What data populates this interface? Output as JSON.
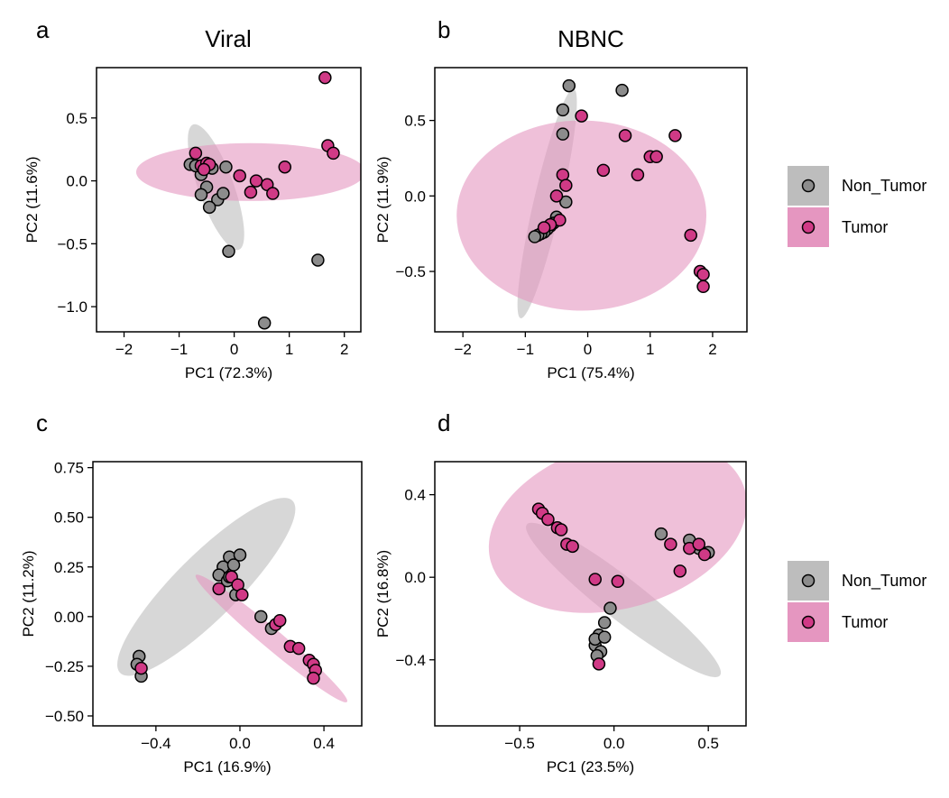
{
  "colors": {
    "non_tumor_fill": "#8c8c8c",
    "non_tumor_ellipse": "#bdbdbd",
    "tumor_fill": "#d03a86",
    "tumor_ellipse": "#e596c0",
    "point_stroke": "#000000"
  },
  "legends": [
    {
      "entries": [
        {
          "label": "Non_Tumor",
          "group": "Non_Tumor"
        },
        {
          "label": "Tumor",
          "group": "Tumor"
        }
      ]
    },
    {
      "entries": [
        {
          "label": "Non_Tumor",
          "group": "Non_Tumor"
        },
        {
          "label": "Tumor",
          "group": "Tumor"
        }
      ]
    }
  ],
  "chart_data": [
    {
      "type": "scatter",
      "panel_letter": "a",
      "title": "Viral",
      "xlabel": "PC1 (72.3%)",
      "ylabel": "PC2 (11.6%)",
      "xlim": [
        -2.5,
        2.3
      ],
      "ylim": [
        -1.2,
        0.9
      ],
      "xticks": [
        -2,
        -1,
        0,
        1,
        2
      ],
      "xticklabels": [
        "−2",
        "−1",
        "0",
        "1",
        "2"
      ],
      "yticks": [
        -1.0,
        -0.5,
        0.0,
        0.5
      ],
      "yticklabels": [
        "−1.0",
        "−0.5",
        "0.0",
        "0.5"
      ],
      "grid": false,
      "ellipses": [
        {
          "group": "Non_Tumor",
          "cx": -0.33,
          "cy": -0.05,
          "rx": 0.32,
          "ry": 0.53,
          "angle_deg": -20
        },
        {
          "group": "Tumor",
          "cx": 0.3,
          "cy": 0.07,
          "rx": 2.08,
          "ry": 0.23,
          "angle_deg": 0
        }
      ],
      "series": [
        {
          "name": "Non_Tumor",
          "x": [
            -0.8,
            -0.6,
            -0.4,
            -0.15,
            -0.5,
            -0.3,
            -0.2,
            -0.45,
            -0.6,
            0.55,
            1.52,
            -0.1,
            -0.7
          ],
          "y": [
            0.13,
            0.05,
            0.1,
            0.11,
            -0.05,
            -0.15,
            -0.1,
            -0.21,
            -0.11,
            -1.13,
            -0.63,
            -0.56,
            0.12
          ]
        },
        {
          "name": "Tumor",
          "x": [
            -0.7,
            -0.6,
            -0.5,
            -0.45,
            -0.55,
            0.1,
            0.4,
            0.6,
            0.7,
            0.92,
            0.3,
            1.65,
            1.7,
            1.8
          ],
          "y": [
            0.22,
            0.12,
            0.14,
            0.13,
            0.09,
            0.04,
            0.0,
            -0.03,
            -0.1,
            0.11,
            -0.09,
            0.82,
            0.28,
            0.22
          ]
        }
      ]
    },
    {
      "type": "scatter",
      "panel_letter": "b",
      "title": "NBNC",
      "xlabel": "PC1 (75.4%)",
      "ylabel": "PC2 (11.9%)",
      "xlim": [
        -2.45,
        2.55
      ],
      "ylim": [
        -0.9,
        0.85
      ],
      "xticks": [
        -2,
        -1,
        0,
        1,
        2
      ],
      "xticklabels": [
        "−2",
        "−1",
        "0",
        "1",
        "2"
      ],
      "yticks": [
        -0.5,
        0.0,
        0.5
      ],
      "yticklabels": [
        "−0.5",
        "0.0",
        "0.5"
      ],
      "grid": false,
      "ellipses": [
        {
          "group": "Non_Tumor",
          "cx": -0.65,
          "cy": -0.05,
          "rx": 0.22,
          "ry": 0.78,
          "angle_deg": 13
        },
        {
          "group": "Tumor",
          "cx": -0.1,
          "cy": -0.13,
          "rx": 2.0,
          "ry": 0.63,
          "angle_deg": 0
        }
      ],
      "series": [
        {
          "name": "Non_Tumor",
          "x": [
            -0.3,
            0.55,
            -0.4,
            -0.4,
            -0.5,
            -0.55,
            -0.6,
            -0.65,
            -0.7,
            -0.75,
            -0.8,
            -0.85,
            -0.35
          ],
          "y": [
            0.73,
            0.7,
            0.57,
            0.41,
            -0.14,
            -0.18,
            -0.2,
            -0.22,
            -0.24,
            -0.25,
            -0.26,
            -0.27,
            -0.04
          ]
        },
        {
          "name": "Tumor",
          "x": [
            -0.1,
            -0.4,
            -0.35,
            -0.5,
            0.25,
            0.6,
            0.8,
            1.0,
            1.1,
            1.4,
            1.65,
            1.8,
            1.85,
            1.85,
            -0.45,
            -0.6,
            -0.7
          ],
          "y": [
            0.53,
            0.14,
            0.07,
            0.0,
            0.17,
            0.4,
            0.14,
            0.26,
            0.26,
            0.4,
            -0.26,
            -0.5,
            -0.52,
            -0.6,
            -0.16,
            -0.19,
            -0.21
          ]
        }
      ]
    },
    {
      "type": "scatter",
      "panel_letter": "c",
      "title": "",
      "xlabel": "PC1 (16.9%)",
      "ylabel": "PC2 (11.2%)",
      "xlim": [
        -0.7,
        0.58
      ],
      "ylim": [
        -0.55,
        0.78
      ],
      "xticks": [
        -0.4,
        0.0,
        0.4
      ],
      "xticklabels": [
        "−0.4",
        "0.0",
        "0.4"
      ],
      "yticks": [
        -0.5,
        -0.25,
        0.0,
        0.25,
        0.5,
        0.75
      ],
      "yticklabels": [
        "−0.50",
        "−0.25",
        "0.00",
        "0.25",
        "0.50",
        "0.75"
      ],
      "grid": false,
      "ellipses": [
        {
          "group": "Non_Tumor",
          "cx": -0.16,
          "cy": 0.15,
          "rx": 0.58,
          "ry": 0.16,
          "angle_deg": -45
        },
        {
          "group": "Tumor",
          "cx": 0.15,
          "cy": -0.11,
          "rx": 0.47,
          "ry": 0.05,
          "angle_deg": 40
        }
      ],
      "series": [
        {
          "name": "Non_Tumor",
          "x": [
            -0.05,
            -0.08,
            -0.1,
            -0.06,
            -0.03,
            0.0,
            -0.02,
            -0.05,
            0.1,
            0.15,
            -0.48,
            -0.49,
            -0.47
          ],
          "y": [
            0.3,
            0.25,
            0.21,
            0.18,
            0.26,
            0.31,
            0.11,
            0.2,
            0.0,
            -0.06,
            -0.2,
            -0.24,
            -0.3
          ]
        },
        {
          "name": "Tumor",
          "x": [
            -0.1,
            -0.04,
            -0.01,
            0.01,
            0.17,
            0.19,
            0.24,
            0.28,
            0.33,
            0.35,
            0.36,
            0.35,
            -0.47
          ],
          "y": [
            0.14,
            0.2,
            0.16,
            0.11,
            -0.04,
            -0.02,
            -0.15,
            -0.16,
            -0.22,
            -0.24,
            -0.27,
            -0.31,
            -0.26
          ]
        }
      ]
    },
    {
      "type": "scatter",
      "panel_letter": "d",
      "title": "",
      "xlabel": "PC1 (23.5%)",
      "ylabel": "PC2 (16.8%)",
      "xlim": [
        -0.95,
        0.7
      ],
      "ylim": [
        -0.72,
        0.56
      ],
      "xticks": [
        -0.5,
        0.0,
        0.5
      ],
      "xticklabels": [
        "−0.5",
        "0.0",
        "0.5"
      ],
      "yticks": [
        -0.4,
        0.0,
        0.4
      ],
      "yticklabels": [
        "−0.4",
        "0.0",
        "0.4"
      ],
      "grid": false,
      "ellipses": [
        {
          "group": "Non_Tumor",
          "cx": 0.05,
          "cy": -0.11,
          "rx": 0.65,
          "ry": 0.1,
          "angle_deg": 38
        },
        {
          "group": "Tumor",
          "cx": 0.02,
          "cy": 0.25,
          "rx": 0.7,
          "ry": 0.4,
          "angle_deg": -16
        }
      ],
      "series": [
        {
          "name": "Non_Tumor",
          "x": [
            0.25,
            0.4,
            0.45,
            0.5,
            -0.05,
            -0.08,
            -0.1,
            -0.07,
            -0.1,
            -0.05,
            -0.02,
            -0.09
          ],
          "y": [
            0.21,
            0.18,
            0.14,
            0.12,
            -0.22,
            -0.28,
            -0.33,
            -0.36,
            -0.3,
            -0.29,
            -0.15,
            -0.38
          ]
        },
        {
          "name": "Tumor",
          "x": [
            -0.4,
            -0.38,
            -0.35,
            -0.3,
            -0.28,
            -0.25,
            -0.22,
            -0.1,
            0.02,
            0.3,
            0.4,
            0.45,
            0.48,
            0.35,
            -0.08
          ],
          "y": [
            0.33,
            0.31,
            0.28,
            0.24,
            0.23,
            0.16,
            0.15,
            -0.01,
            -0.02,
            0.16,
            0.14,
            0.16,
            0.11,
            0.03,
            -0.42
          ]
        }
      ]
    }
  ]
}
